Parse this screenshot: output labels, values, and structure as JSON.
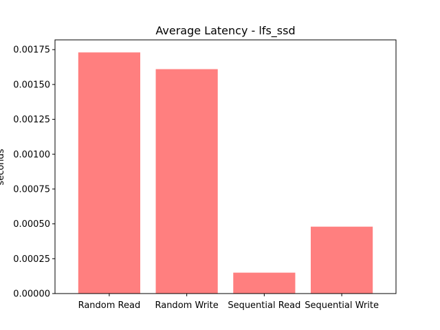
{
  "chart_data": {
    "type": "bar",
    "title": "Average Latency - lfs_ssd",
    "xlabel": "",
    "ylabel": "seconds",
    "categories": [
      "Random Read",
      "Random Write",
      "Sequential Read",
      "Sequential Write"
    ],
    "values": [
      0.00173,
      0.00161,
      0.00015,
      0.00048
    ],
    "ylim": [
      0,
      0.00182
    ],
    "yticks": [
      "0.00000",
      "0.00025",
      "0.00050",
      "0.00075",
      "0.00100",
      "0.00125",
      "0.00150",
      "0.00175"
    ],
    "bar_color": "#ff7f7f",
    "grid": false
  }
}
